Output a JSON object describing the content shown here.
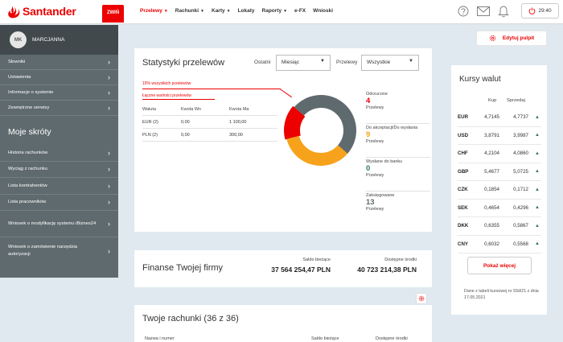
{
  "brand": {
    "name": "Santander",
    "color": "#ec0000"
  },
  "header": {
    "collapse_label": "ZWIŃ",
    "nav": [
      {
        "label": "Przelewy",
        "dropdown": true,
        "active": true
      },
      {
        "label": "Rachunki",
        "dropdown": true,
        "active": false
      },
      {
        "label": "Karty",
        "dropdown": true,
        "active": false
      },
      {
        "label": "Lokaty",
        "dropdown": false,
        "active": false
      },
      {
        "label": "Raporty",
        "dropdown": true,
        "active": false
      },
      {
        "label": "e-FX",
        "dropdown": false,
        "active": false
      },
      {
        "label": "Wnioski",
        "dropdown": false,
        "active": false
      }
    ],
    "icons": [
      "help-icon",
      "mail-icon",
      "bell-icon"
    ],
    "session_timer": "29:40"
  },
  "sidebar": {
    "user_initials": "MK",
    "user_name": "MARCJANNA",
    "items": [
      "Słowniki",
      "Ustawienia",
      "Informacje o systemie",
      "Zewnętrzne serwisy"
    ],
    "shortcuts_title": "Moje skróty",
    "shortcuts": [
      "Historia rachunków",
      "Wyciąg z rachunku",
      "Lista kontrahentów",
      "Lista pracowników",
      "Wniosek o modyfikację systemu iBiznes24",
      "Wniosek o zamówienie narzędzia autoryzacji"
    ]
  },
  "edit_dashboard_label": "Edytuj pulpit",
  "stats": {
    "title": "Statystyki przelewów",
    "filter1_label": "Ostatni",
    "filter1_value": "Miesiąc",
    "filter2_label": "Przelewy",
    "filter2_value": "Wszystkie",
    "note_percent": "15% wszystkich przelewów",
    "note_total": "Łączne wartości przelewów",
    "table_headers": [
      "Waluta",
      "Kwota Wn",
      "Kwota Ma"
    ],
    "table_rows": [
      [
        "EUR (2)",
        "0,00",
        "1 100,00"
      ],
      [
        "PLN (2)",
        "0,00",
        "300,00"
      ]
    ],
    "legend": [
      {
        "label": "Odrzucone",
        "value": "4",
        "sub": "Przelewy",
        "color": "#ec0000"
      },
      {
        "label": "Do akceptacji/Do wysłania",
        "value": "9",
        "sub": "Przelewy",
        "color": "#f7a21b"
      },
      {
        "label": "Wysłane do banku",
        "value": "0",
        "sub": "Przelewy",
        "color": "#2e7d4f"
      },
      {
        "label": "Zaksięgowane",
        "value": "13",
        "sub": "Przelewy",
        "color": "#5f6a6e"
      }
    ]
  },
  "chart_data": {
    "type": "pie",
    "labels": [
      "Odrzucone",
      "Do akceptacji/Do wysłania",
      "Wysłane do banku",
      "Zaksięgowane"
    ],
    "values": [
      4,
      9,
      0,
      13
    ],
    "colors": [
      "#ec0000",
      "#f7a21b",
      "#2e7d4f",
      "#5f6a6e"
    ]
  },
  "finance": {
    "title": "Finanse Twojej firmy",
    "balance_label": "Saldo bieżące",
    "balance_value": "37 564 254,47  PLN",
    "available_label": "Dostępne środki",
    "available_value": "40 723 214,38  PLN"
  },
  "accounts": {
    "title": "Twoje rachunki (36 z 36)",
    "columns": [
      "Nazwa i numer",
      "Saldo bieżące",
      "Dostępne środki"
    ]
  },
  "rates": {
    "title": "Kursy walut",
    "buy_label": "Kup",
    "sell_label": "Sprzedaj",
    "rows": [
      {
        "currency": "EUR",
        "buy": "4,7145",
        "sell": "4,7737",
        "trend": "up"
      },
      {
        "currency": "USD",
        "buy": "3,8791",
        "sell": "3,9987",
        "trend": "up"
      },
      {
        "currency": "CHF",
        "buy": "4,2104",
        "sell": "4,0860",
        "trend": "up"
      },
      {
        "currency": "GBP",
        "buy": "5,4677",
        "sell": "5,0725",
        "trend": "up"
      },
      {
        "currency": "CZK",
        "buy": "0,1854",
        "sell": "0,1712",
        "trend": "up"
      },
      {
        "currency": "SEK",
        "buy": "0,4654",
        "sell": "0,4296",
        "trend": "up"
      },
      {
        "currency": "DKK",
        "buy": "0,6355",
        "sell": "0,5867",
        "trend": "up"
      },
      {
        "currency": "CNY",
        "buy": "0,6032",
        "sell": "0,5568",
        "trend": "up"
      }
    ],
    "more_label": "Pokaż więcej",
    "note": "Dane z tabeli kursowej nr 93d/21 z dnia 17.05.2021"
  }
}
